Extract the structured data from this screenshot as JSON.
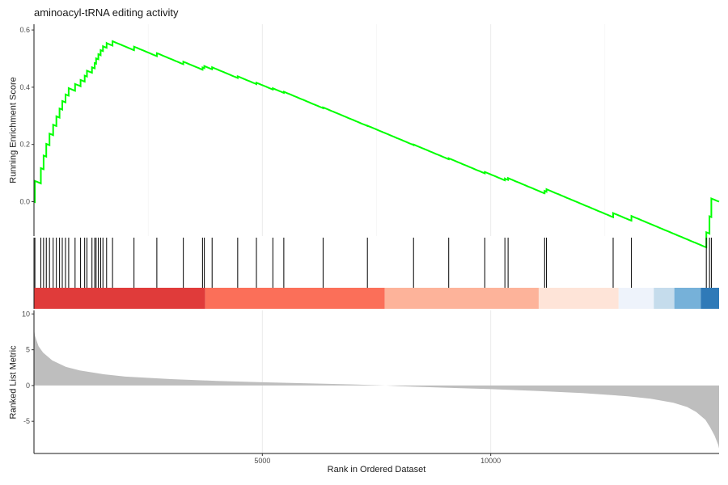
{
  "chart_data": {
    "type": "line",
    "title": "aminoacyl-tRNA editing activity",
    "xlabel": "Rank in Ordered Dataset",
    "x_range": [
      0,
      15000
    ],
    "x_ticks": [
      5000,
      10000
    ],
    "x_tick_labels": [
      "5000",
      "10000"
    ],
    "line_color": "#00ff00",
    "panels": [
      {
        "name": "running-score",
        "ylabel": "Running Enrichment Score",
        "ylim": [
          -0.12,
          0.62
        ],
        "y_ticks": [
          0.0,
          0.2,
          0.4,
          0.6
        ],
        "y_tick_labels": [
          "0.0",
          "0.2",
          "0.4",
          "0.6"
        ],
        "grid": true
      },
      {
        "name": "hit-barcode",
        "hits": [
          20,
          150,
          210,
          270,
          340,
          420,
          490,
          560,
          620,
          690,
          760,
          900,
          1020,
          1110,
          1160,
          1270,
          1330,
          1360,
          1410,
          1460,
          1510,
          1590,
          1720,
          2190,
          2690,
          3270,
          3690,
          3730,
          3900,
          4460,
          4870,
          5230,
          5470,
          6330,
          7300,
          8310,
          9080,
          9870,
          10310,
          10380,
          11180,
          11220,
          12680,
          13080,
          14720,
          14790,
          14830
        ]
      },
      {
        "name": "rank-colorbar",
        "segments": [
          {
            "start": 0,
            "end": 3750,
            "color": "#e03b3a"
          },
          {
            "start": 3750,
            "end": 7680,
            "color": "#fb6f59"
          },
          {
            "start": 7680,
            "end": 11050,
            "color": "#fdb39a"
          },
          {
            "start": 11050,
            "end": 12800,
            "color": "#fee4d8"
          },
          {
            "start": 12800,
            "end": 13570,
            "color": "#eef3fb"
          },
          {
            "start": 13570,
            "end": 14020,
            "color": "#c5dcec"
          },
          {
            "start": 14020,
            "end": 14600,
            "color": "#76b1d9"
          },
          {
            "start": 14600,
            "end": 15000,
            "color": "#2f7ab8"
          }
        ]
      },
      {
        "name": "ranked-list-metric",
        "ylabel": "Ranked List Metric",
        "ylim": [
          -9.5,
          10.5
        ],
        "y_ticks": [
          -5,
          0,
          5,
          10
        ],
        "y_tick_labels": [
          "-5",
          "0",
          "5",
          "10"
        ],
        "fill_color": "#bebebe",
        "series": [
          {
            "x": [
              0,
              20,
              100,
              200,
              400,
              700,
              1000,
              1500,
              2000,
              3000,
              4000,
              5000,
              6000,
              7000,
              7500,
              7700,
              8000,
              9000,
              10000,
              11000,
              12000,
              13000,
              13500,
              14000,
              14300,
              14500,
              14700,
              14800,
              14900,
              14980,
              15000
            ],
            "values": [
              8,
              7,
              5.5,
              4.6,
              3.5,
              2.6,
              2.1,
              1.6,
              1.25,
              0.9,
              0.65,
              0.45,
              0.3,
              0.15,
              0.05,
              0,
              -0.1,
              -0.3,
              -0.5,
              -0.75,
              -1.05,
              -1.5,
              -1.85,
              -2.4,
              -3.0,
              -3.7,
              -4.8,
              -5.8,
              -7.0,
              -8.3,
              -8.8
            ]
          }
        ]
      }
    ]
  }
}
